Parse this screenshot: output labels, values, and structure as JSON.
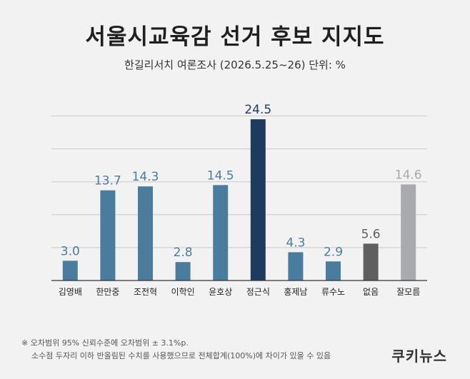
{
  "title": "서울시교육감 선거 후보 지지도",
  "subtitle": "한길리서치 여론조사 (2026.5.25~26) 단위: %",
  "colors": {
    "default": "#4a7c9e",
    "highlight": "#1e3a5f",
    "none": "#5f5f5f",
    "unknown": "#a8aaae",
    "grid": "#c9c9c9"
  },
  "chart_data": {
    "type": "bar",
    "categories": [
      "김영배",
      "한만중",
      "조전혁",
      "이학인",
      "윤호상",
      "정근식",
      "홍제남",
      "류수노",
      "없음",
      "잘모름"
    ],
    "values": [
      3.0,
      13.7,
      14.3,
      2.8,
      14.5,
      24.5,
      4.3,
      2.9,
      5.6,
      14.6
    ],
    "value_labels": [
      "3.0",
      "13.7",
      "14.3",
      "2.8",
      "14.5",
      "24.5",
      "4.3",
      "2.9",
      "5.6",
      "14.6"
    ],
    "bar_colors": [
      "default",
      "default",
      "default",
      "default",
      "default",
      "highlight",
      "default",
      "default",
      "none",
      "unknown"
    ],
    "ylim": [
      0,
      27
    ],
    "grid": true
  },
  "note": {
    "line1": "※ 오차범위 95% 신뢰수준에 오차범위 ± 3.1%p.",
    "line2": "소수점 두자리 이하 반올림된 수치를 사용했으므로 전체합계(100%)에 차이가 있을 수 있음"
  },
  "logo": "쿠키뉴스"
}
